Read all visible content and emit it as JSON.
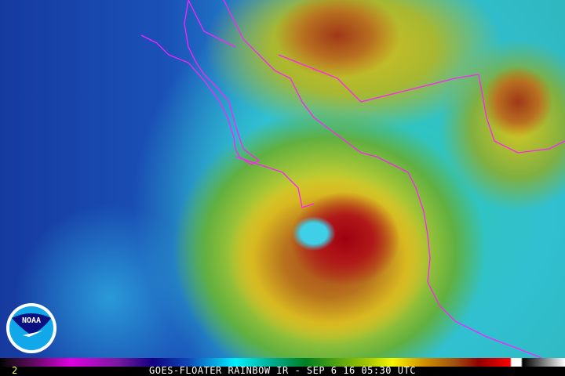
{
  "caption": "GOES-FLOATER RAINBOW IR - SEP 6 16 05:30 UTC",
  "frame_number": "2",
  "logo": {
    "text": "NOAA",
    "colors": {
      "top": "#0a1080",
      "bottom": "#10a8e8",
      "ring": "#ffffff"
    }
  },
  "coastline_color": "#ff20ff",
  "colorbar_colors": [
    "#000000",
    "#e000e0",
    "#100080",
    "#00f0ff",
    "#008020",
    "#f8f800",
    "#a05010",
    "#ff0000",
    "#ffffff",
    "#000000",
    "#ffffff"
  ]
}
